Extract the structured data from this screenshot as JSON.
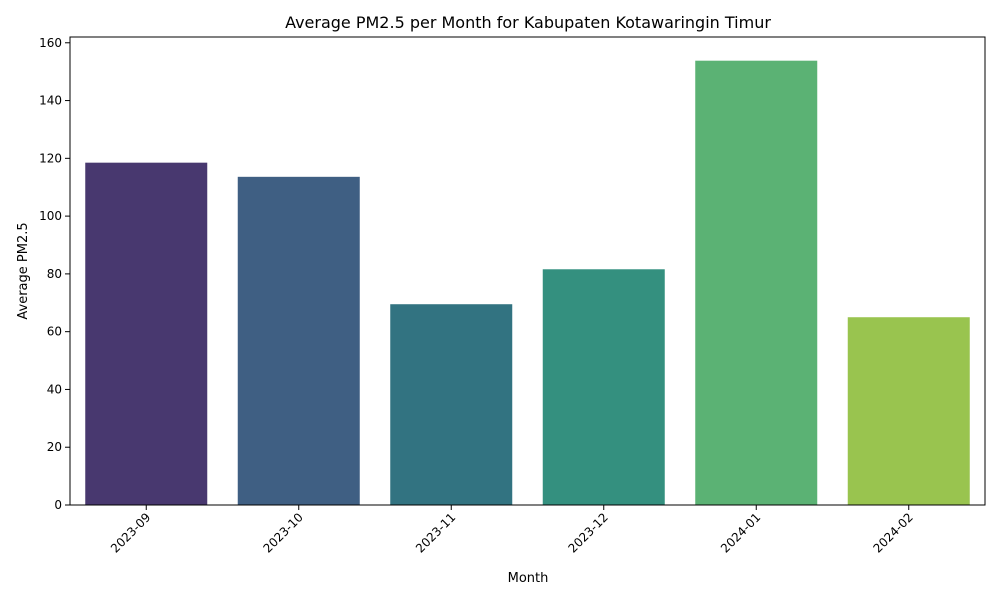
{
  "chart_data": {
    "type": "bar",
    "title": "Average PM2.5 per Month for Kabupaten Kotawaringin Timur",
    "xlabel": "Month",
    "ylabel": "Average PM2.5",
    "categories": [
      "2023-09",
      "2023-10",
      "2023-11",
      "2023-12",
      "2024-01",
      "2024-02"
    ],
    "values": [
      118.5,
      113.6,
      69.5,
      81.6,
      153.8,
      65.0
    ],
    "colors": [
      "#48386f",
      "#3f5f83",
      "#327381",
      "#34907f",
      "#5bb274",
      "#99c44f"
    ],
    "ylim": [
      0,
      162
    ],
    "yticks": [
      0,
      20,
      40,
      60,
      80,
      100,
      120,
      140,
      160
    ],
    "grid": false,
    "legend": "none"
  }
}
